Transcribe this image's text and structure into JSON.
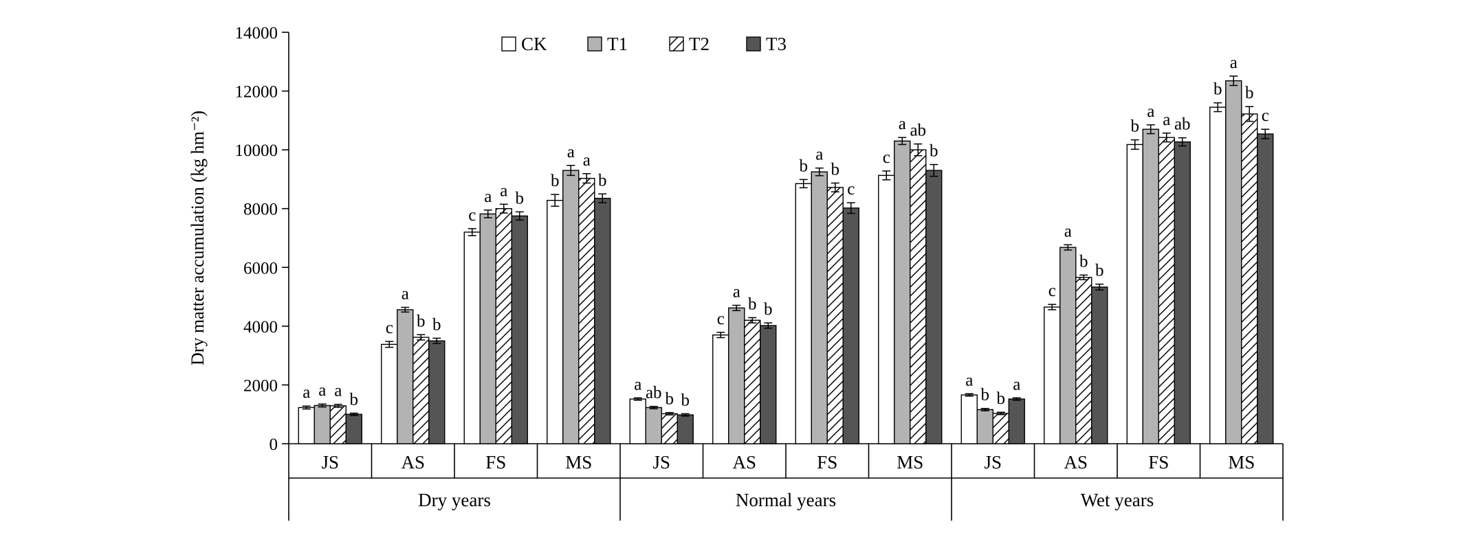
{
  "chart_data": {
    "type": "bar",
    "ylabel": "Dry matter accumulation (kg hm⁻²)",
    "ylim": [
      0,
      14000
    ],
    "yticks": [
      0,
      2000,
      4000,
      6000,
      8000,
      10000,
      12000,
      14000
    ],
    "legend_position": "top",
    "groups": [
      "Dry years",
      "Normal years",
      "Wet years"
    ],
    "stages": [
      "JS",
      "AS",
      "FS",
      "MS"
    ],
    "series": [
      {
        "name": "CK",
        "fill": "#ffffff",
        "pattern": "none"
      },
      {
        "name": "T1",
        "fill": "#b3b3b3",
        "pattern": "none"
      },
      {
        "name": "T2",
        "fill": "#ffffff",
        "pattern": "diagonal-hatch"
      },
      {
        "name": "T3",
        "fill": "#555555",
        "pattern": "none"
      }
    ],
    "values": [
      [
        [
          1230,
          1300,
          1290,
          1000
        ],
        [
          3380,
          4560,
          3620,
          3500
        ],
        [
          7200,
          7820,
          8000,
          7750
        ],
        [
          8280,
          9300,
          9030,
          8350
        ]
      ],
      [
        [
          1520,
          1230,
          1020,
          980
        ],
        [
          3700,
          4620,
          4200,
          4020
        ],
        [
          8850,
          9250,
          8720,
          8020
        ],
        [
          9130,
          10300,
          10000,
          9300
        ]
      ],
      [
        [
          1660,
          1160,
          1030,
          1520
        ],
        [
          4650,
          6680,
          5660,
          5330
        ],
        [
          10180,
          10700,
          10420,
          10270
        ],
        [
          11450,
          12350,
          11220,
          10540
        ]
      ]
    ],
    "errors": [
      [
        [
          50,
          50,
          50,
          40
        ],
        [
          100,
          80,
          90,
          90
        ],
        [
          120,
          130,
          150,
          140
        ],
        [
          200,
          170,
          160,
          150
        ]
      ],
      [
        [
          40,
          40,
          40,
          40
        ],
        [
          90,
          90,
          90,
          90
        ],
        [
          140,
          130,
          150,
          180
        ],
        [
          150,
          120,
          200,
          200
        ]
      ],
      [
        [
          40,
          40,
          40,
          40
        ],
        [
          90,
          90,
          80,
          100
        ],
        [
          160,
          150,
          150,
          140
        ],
        [
          150,
          160,
          250,
          160
        ]
      ]
    ],
    "significance": [
      [
        [
          "a",
          "a",
          "a",
          "b"
        ],
        [
          "c",
          "a",
          "b",
          "b"
        ],
        [
          "c",
          "a",
          "a",
          "b"
        ],
        [
          "b",
          "a",
          "a",
          "b"
        ]
      ],
      [
        [
          "a",
          "ab",
          "b",
          "b"
        ],
        [
          "c",
          "a",
          "b",
          "b"
        ],
        [
          "b",
          "a",
          "b",
          "c"
        ],
        [
          "c",
          "a",
          "ab",
          "b"
        ]
      ],
      [
        [
          "a",
          "b",
          "b",
          "a"
        ],
        [
          "c",
          "a",
          "b",
          "b"
        ],
        [
          "b",
          "a",
          "a",
          "ab"
        ],
        [
          "b",
          "a",
          "b",
          "c"
        ]
      ]
    ]
  }
}
